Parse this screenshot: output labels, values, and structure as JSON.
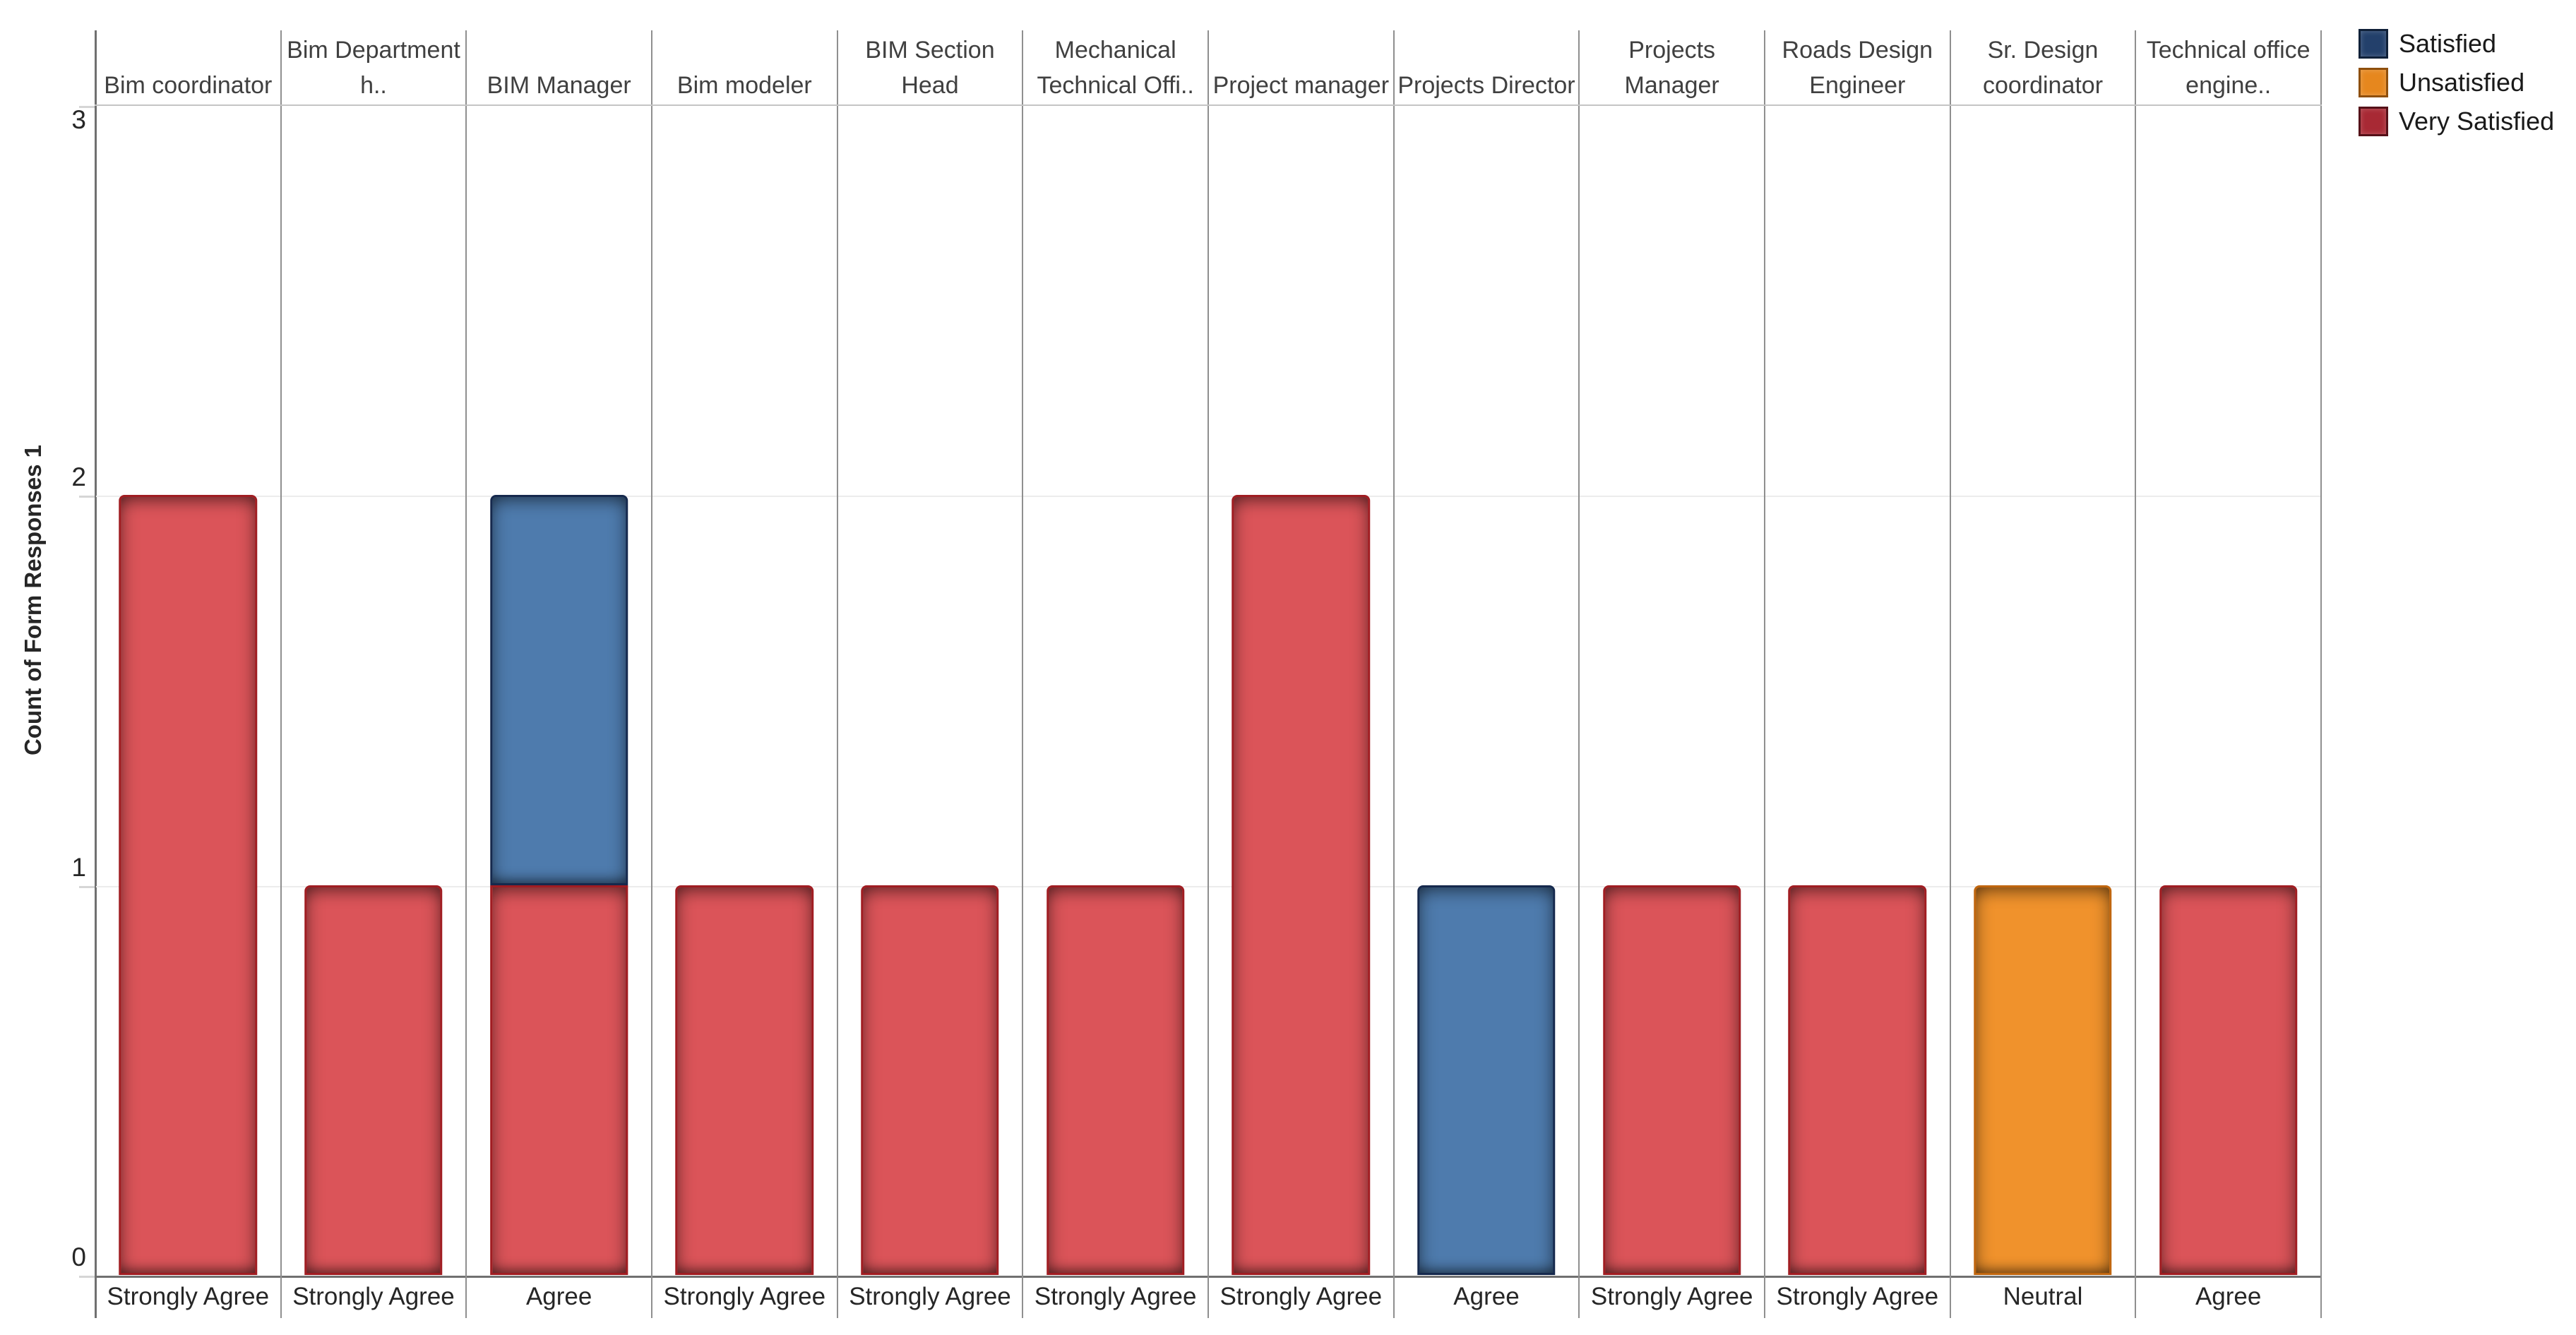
{
  "chart_data": {
    "type": "bar",
    "stacked": true,
    "title": "",
    "ylabel": "Count of Form Responses 1",
    "ylim": [
      0,
      3
    ],
    "yticks": [
      0,
      1,
      2,
      3
    ],
    "grid": "horizontal-light",
    "legend_position": "top-right",
    "legend": [
      {
        "label": "Satisfied"
      },
      {
        "label": "Unsatisfied"
      },
      {
        "label": "Very Satisfied"
      }
    ],
    "panels": [
      {
        "header": "Bim coordinator",
        "xlabel": "Strongly Agree",
        "segments": [
          {
            "series": "Very Satisfied",
            "value": 2
          }
        ]
      },
      {
        "header": "Bim Department h..",
        "xlabel": "Strongly Agree",
        "segments": [
          {
            "series": "Very Satisfied",
            "value": 1
          }
        ]
      },
      {
        "header": "BIM Manager",
        "xlabel": "Agree",
        "segments": [
          {
            "series": "Very Satisfied",
            "value": 1
          },
          {
            "series": "Satisfied",
            "value": 1
          }
        ]
      },
      {
        "header": "Bim modeler",
        "xlabel": "Strongly Agree",
        "segments": [
          {
            "series": "Very Satisfied",
            "value": 1
          }
        ]
      },
      {
        "header": "BIM Section Head",
        "xlabel": "Strongly Agree",
        "segments": [
          {
            "series": "Very Satisfied",
            "value": 1
          }
        ]
      },
      {
        "header": "Mechanical Technical Offi..",
        "xlabel": "Strongly Agree",
        "segments": [
          {
            "series": "Very Satisfied",
            "value": 1
          }
        ]
      },
      {
        "header": "Project manager",
        "xlabel": "Strongly Agree",
        "segments": [
          {
            "series": "Very Satisfied",
            "value": 2
          }
        ]
      },
      {
        "header": "Projects Director",
        "xlabel": "Agree",
        "segments": [
          {
            "series": "Satisfied",
            "value": 1
          }
        ]
      },
      {
        "header": "Projects Manager",
        "xlabel": "Strongly Agree",
        "segments": [
          {
            "series": "Very Satisfied",
            "value": 1
          }
        ]
      },
      {
        "header": "Roads Design Engineer",
        "xlabel": "Strongly Agree",
        "segments": [
          {
            "series": "Very Satisfied",
            "value": 1
          }
        ]
      },
      {
        "header": "Sr. Design coordinator",
        "xlabel": "Neutral",
        "segments": [
          {
            "series": "Unsatisfied",
            "value": 1
          }
        ]
      },
      {
        "header": "Technical office engine..",
        "xlabel": "Agree",
        "segments": [
          {
            "series": "Very Satisfied",
            "value": 1
          }
        ]
      }
    ],
    "colors": {
      "bar_fill": {
        "Satisfied": "#4e7bad",
        "Unsatisfied": "#f0922c",
        "Very Satisfied": "#db5459"
      },
      "bar_border": {
        "Satisfied": "#16294d",
        "Unsatisfied": "#c0660f",
        "Very Satisfied": "#a01d22"
      },
      "legend_fill": {
        "Satisfied": "#23406b",
        "Unsatisfied": "#e6871e",
        "Very Satisfied": "#a82934"
      },
      "legend_border": {
        "Satisfied": "#0f2038",
        "Unsatisfied": "#8e4f0d",
        "Very Satisfied": "#551118"
      },
      "panel_divider": "#8f8f8f",
      "axis_line": "#707070",
      "gridline": "#ececec",
      "header_separator": "#c4c4c4"
    }
  }
}
